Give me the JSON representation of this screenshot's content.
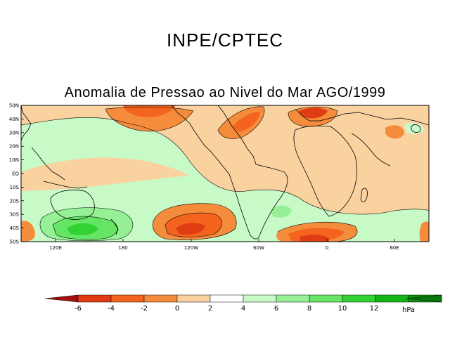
{
  "header": "INPE/CPTEC",
  "title": "Anomalia de Pressao ao Nivel do Mar AGO/1999",
  "map": {
    "lat_labels": [
      "50N",
      "40N",
      "30N",
      "20N",
      "10N",
      "EQ",
      "10S",
      "20S",
      "30S",
      "40S",
      "50S"
    ],
    "lon_labels": [
      "120E",
      "180",
      "120W",
      "60W",
      "0",
      "60E"
    ]
  },
  "colorbar": {
    "tick_labels": [
      "-6",
      "-4",
      "-2",
      "0",
      "2",
      "4",
      "6",
      "8",
      "10",
      "12"
    ],
    "units": "hPa",
    "colors": [
      "#a50f0f",
      "#e03c14",
      "#f5641e",
      "#f58c3c",
      "#fad2a0",
      "#ffffff",
      "#c8fac8",
      "#96f096",
      "#64e664",
      "#32d232",
      "#14b414",
      "#0a960a",
      "#0a780a"
    ]
  }
}
